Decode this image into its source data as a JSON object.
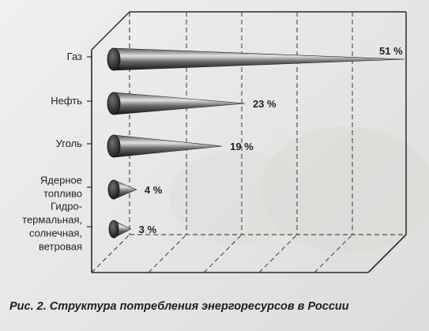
{
  "caption": "Рис. 2. Структура потребления энергоресурсов в России",
  "chart_data": {
    "type": "bar",
    "orientation": "horizontal",
    "style": "3d-cones",
    "title": "",
    "xlabel": "",
    "ylabel": "",
    "xlim": [
      0,
      51
    ],
    "grid": true,
    "categories": [
      [
        "Газ"
      ],
      [
        "Нефть"
      ],
      [
        "Уголь"
      ],
      [
        "Ядерное",
        "топливо"
      ],
      [
        "Гидро-",
        "термальная,",
        "солнечная,",
        "ветровая"
      ]
    ],
    "values": [
      51,
      23,
      19,
      4,
      3
    ],
    "value_labels": [
      "51 %",
      "23 %",
      "19 %",
      "4 %",
      "3 %"
    ],
    "colors": {
      "cone_dark": "#141414",
      "cone_light": "#d8d8d8",
      "frame": "#2a2a2a"
    }
  }
}
